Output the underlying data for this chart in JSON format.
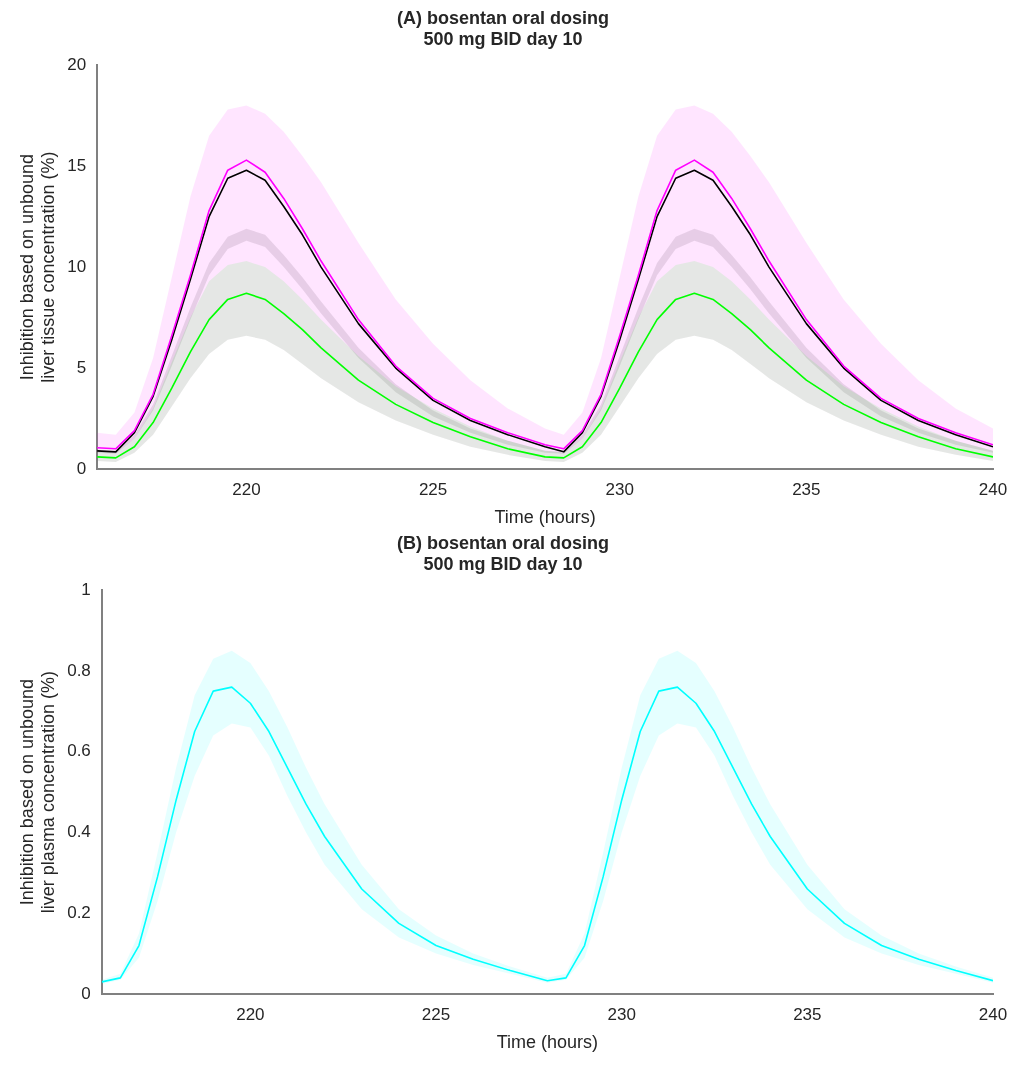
{
  "chart_data": [
    {
      "type": "line",
      "title": "(A) bosentan oral dosing\n500 mg BID day 10",
      "xlabel": "Time (hours)",
      "ylabel": "Inhibition based on unbound\nliver tissue concentration (%)",
      "x": [
        216,
        216.5,
        217,
        217.5,
        218,
        218.5,
        219,
        219.5,
        220,
        220.5,
        221,
        221.5,
        222,
        223,
        224,
        225,
        226,
        227,
        228,
        228.5,
        229,
        229.5,
        230,
        230.5,
        231,
        231.5,
        232,
        232.5,
        233,
        233.5,
        234,
        235,
        236,
        237,
        238,
        239,
        240
      ],
      "xlim": [
        216,
        240
      ],
      "xticks": [
        220,
        225,
        230,
        235,
        240
      ],
      "ylim": [
        0,
        20
      ],
      "yticks": [
        0,
        5,
        10,
        15,
        20
      ],
      "grid": false,
      "legend": false,
      "marker": "none",
      "line_style": "solid",
      "series": [
        {
          "color": "#000000",
          "values": [
            0.9,
            0.85,
            1.8,
            3.6,
            6.4,
            9.4,
            12.5,
            14.4,
            14.8,
            14.3,
            13.0,
            11.6,
            10.0,
            7.2,
            5.0,
            3.4,
            2.4,
            1.7,
            1.1,
            0.85,
            1.8,
            3.6,
            6.4,
            9.4,
            12.5,
            14.4,
            14.8,
            14.3,
            13.0,
            11.6,
            10.0,
            7.2,
            5.0,
            3.4,
            2.4,
            1.7,
            1.1
          ],
          "lower": [
            0.8,
            0.75,
            1.5,
            2.9,
            5.1,
            7.4,
            9.6,
            10.9,
            11.3,
            11.0,
            10.0,
            8.9,
            7.7,
            5.5,
            3.8,
            2.6,
            1.8,
            1.2,
            0.8,
            0.75,
            1.5,
            2.9,
            5.1,
            7.4,
            9.6,
            10.9,
            11.3,
            11.0,
            10.0,
            8.9,
            7.7,
            5.5,
            3.8,
            2.6,
            1.8,
            1.2,
            0.8
          ],
          "upper": [
            0.9,
            0.85,
            1.7,
            3.2,
            5.6,
            8.0,
            10.2,
            11.5,
            11.9,
            11.6,
            10.6,
            9.5,
            8.3,
            6.0,
            4.2,
            2.9,
            2.0,
            1.4,
            0.9,
            0.85,
            1.7,
            3.2,
            5.6,
            8.0,
            10.2,
            11.5,
            11.9,
            11.6,
            10.6,
            9.5,
            8.3,
            6.0,
            4.2,
            2.9,
            2.0,
            1.4,
            0.9
          ]
        },
        {
          "color": "#ff00ff",
          "values": [
            1.05,
            1.0,
            1.9,
            3.7,
            6.6,
            9.6,
            12.8,
            14.8,
            15.3,
            14.7,
            13.4,
            11.9,
            10.3,
            7.4,
            5.1,
            3.5,
            2.5,
            1.8,
            1.2,
            1.0,
            1.9,
            3.7,
            6.6,
            9.6,
            12.8,
            14.8,
            15.3,
            14.7,
            13.4,
            11.9,
            10.3,
            7.4,
            5.1,
            3.5,
            2.5,
            1.8,
            1.2
          ],
          "lower": [
            0.4,
            0.35,
            0.8,
            1.7,
            3.1,
            4.5,
            5.7,
            6.4,
            6.6,
            6.4,
            5.9,
            5.2,
            4.5,
            3.3,
            2.4,
            1.7,
            1.1,
            0.7,
            0.4,
            0.35,
            0.8,
            1.7,
            3.1,
            4.5,
            5.7,
            6.4,
            6.6,
            6.4,
            5.9,
            5.2,
            4.5,
            3.3,
            2.4,
            1.7,
            1.1,
            0.7,
            0.4
          ],
          "upper": [
            1.8,
            1.7,
            2.8,
            5.5,
            9.5,
            13.5,
            16.5,
            17.8,
            18.0,
            17.6,
            16.7,
            15.5,
            14.2,
            11.2,
            8.4,
            6.2,
            4.4,
            3.0,
            2.0,
            1.7,
            2.8,
            5.5,
            9.5,
            13.5,
            16.5,
            17.8,
            18.0,
            17.6,
            16.7,
            15.5,
            14.2,
            11.2,
            8.4,
            6.2,
            4.4,
            3.0,
            2.0
          ]
        },
        {
          "color": "#00ff00",
          "values": [
            0.6,
            0.55,
            1.1,
            2.3,
            4.0,
            5.8,
            7.4,
            8.4,
            8.7,
            8.4,
            7.7,
            6.9,
            6.0,
            4.4,
            3.2,
            2.3,
            1.6,
            1.0,
            0.6,
            0.55,
            1.1,
            2.3,
            4.0,
            5.8,
            7.4,
            8.4,
            8.7,
            8.4,
            7.7,
            6.9,
            6.0,
            4.4,
            3.2,
            2.3,
            1.6,
            1.0,
            0.6
          ],
          "lower": [
            0.4,
            0.35,
            0.8,
            1.7,
            3.1,
            4.5,
            5.7,
            6.4,
            6.6,
            6.4,
            5.9,
            5.2,
            4.5,
            3.3,
            2.4,
            1.7,
            1.1,
            0.7,
            0.4,
            0.35,
            0.8,
            1.7,
            3.1,
            4.5,
            5.7,
            6.4,
            6.6,
            6.4,
            5.9,
            5.2,
            4.5,
            3.3,
            2.4,
            1.7,
            1.1,
            0.7,
            0.4
          ],
          "upper": [
            0.9,
            0.8,
            1.5,
            3.0,
            5.3,
            7.5,
            9.3,
            10.1,
            10.3,
            10.0,
            9.3,
            8.4,
            7.4,
            5.6,
            4.1,
            3.0,
            2.1,
            1.4,
            0.9,
            0.8,
            1.5,
            3.0,
            5.3,
            7.5,
            9.3,
            10.1,
            10.3,
            10.0,
            9.3,
            8.4,
            7.4,
            5.6,
            4.1,
            3.0,
            2.1,
            1.4,
            0.9
          ]
        }
      ]
    },
    {
      "type": "line",
      "title": "(B) bosentan oral dosing\n500 mg BID day 10",
      "xlabel": "Time (hours)",
      "ylabel": "Inhibition based on unbound\nliver plasma concentration (%)",
      "x": [
        216,
        216.5,
        217,
        217.5,
        218,
        218.5,
        219,
        219.5,
        220,
        220.5,
        221,
        221.5,
        222,
        223,
        224,
        225,
        226,
        227,
        228,
        228.5,
        229,
        229.5,
        230,
        230.5,
        231,
        231.5,
        232,
        232.5,
        233,
        233.5,
        234,
        235,
        236,
        237,
        238,
        239,
        240
      ],
      "xlim": [
        216,
        240
      ],
      "xticks": [
        220,
        225,
        230,
        235,
        240
      ],
      "ylim": [
        0,
        1
      ],
      "yticks": [
        0,
        0.2,
        0.4,
        0.6,
        0.8,
        1
      ],
      "grid": false,
      "legend": false,
      "marker": "none",
      "line_style": "solid",
      "series": [
        {
          "color": "#00ffff",
          "values": [
            0.03,
            0.04,
            0.12,
            0.29,
            0.48,
            0.65,
            0.75,
            0.76,
            0.72,
            0.65,
            0.56,
            0.47,
            0.39,
            0.26,
            0.175,
            0.12,
            0.086,
            0.058,
            0.033,
            0.04,
            0.12,
            0.29,
            0.48,
            0.65,
            0.75,
            0.76,
            0.72,
            0.65,
            0.56,
            0.47,
            0.39,
            0.26,
            0.175,
            0.12,
            0.086,
            0.058,
            0.033
          ],
          "lower": [
            0.025,
            0.035,
            0.09,
            0.23,
            0.4,
            0.54,
            0.64,
            0.67,
            0.66,
            0.59,
            0.49,
            0.4,
            0.32,
            0.21,
            0.14,
            0.1,
            0.072,
            0.05,
            0.028,
            0.035,
            0.09,
            0.23,
            0.4,
            0.54,
            0.64,
            0.67,
            0.66,
            0.59,
            0.49,
            0.4,
            0.32,
            0.21,
            0.14,
            0.1,
            0.072,
            0.05,
            0.028
          ],
          "upper": [
            0.035,
            0.05,
            0.15,
            0.35,
            0.56,
            0.74,
            0.83,
            0.85,
            0.82,
            0.75,
            0.66,
            0.56,
            0.47,
            0.32,
            0.21,
            0.145,
            0.1,
            0.068,
            0.04,
            0.05,
            0.15,
            0.35,
            0.56,
            0.74,
            0.83,
            0.85,
            0.82,
            0.75,
            0.66,
            0.56,
            0.47,
            0.32,
            0.21,
            0.145,
            0.1,
            0.068,
            0.04
          ]
        }
      ]
    }
  ]
}
